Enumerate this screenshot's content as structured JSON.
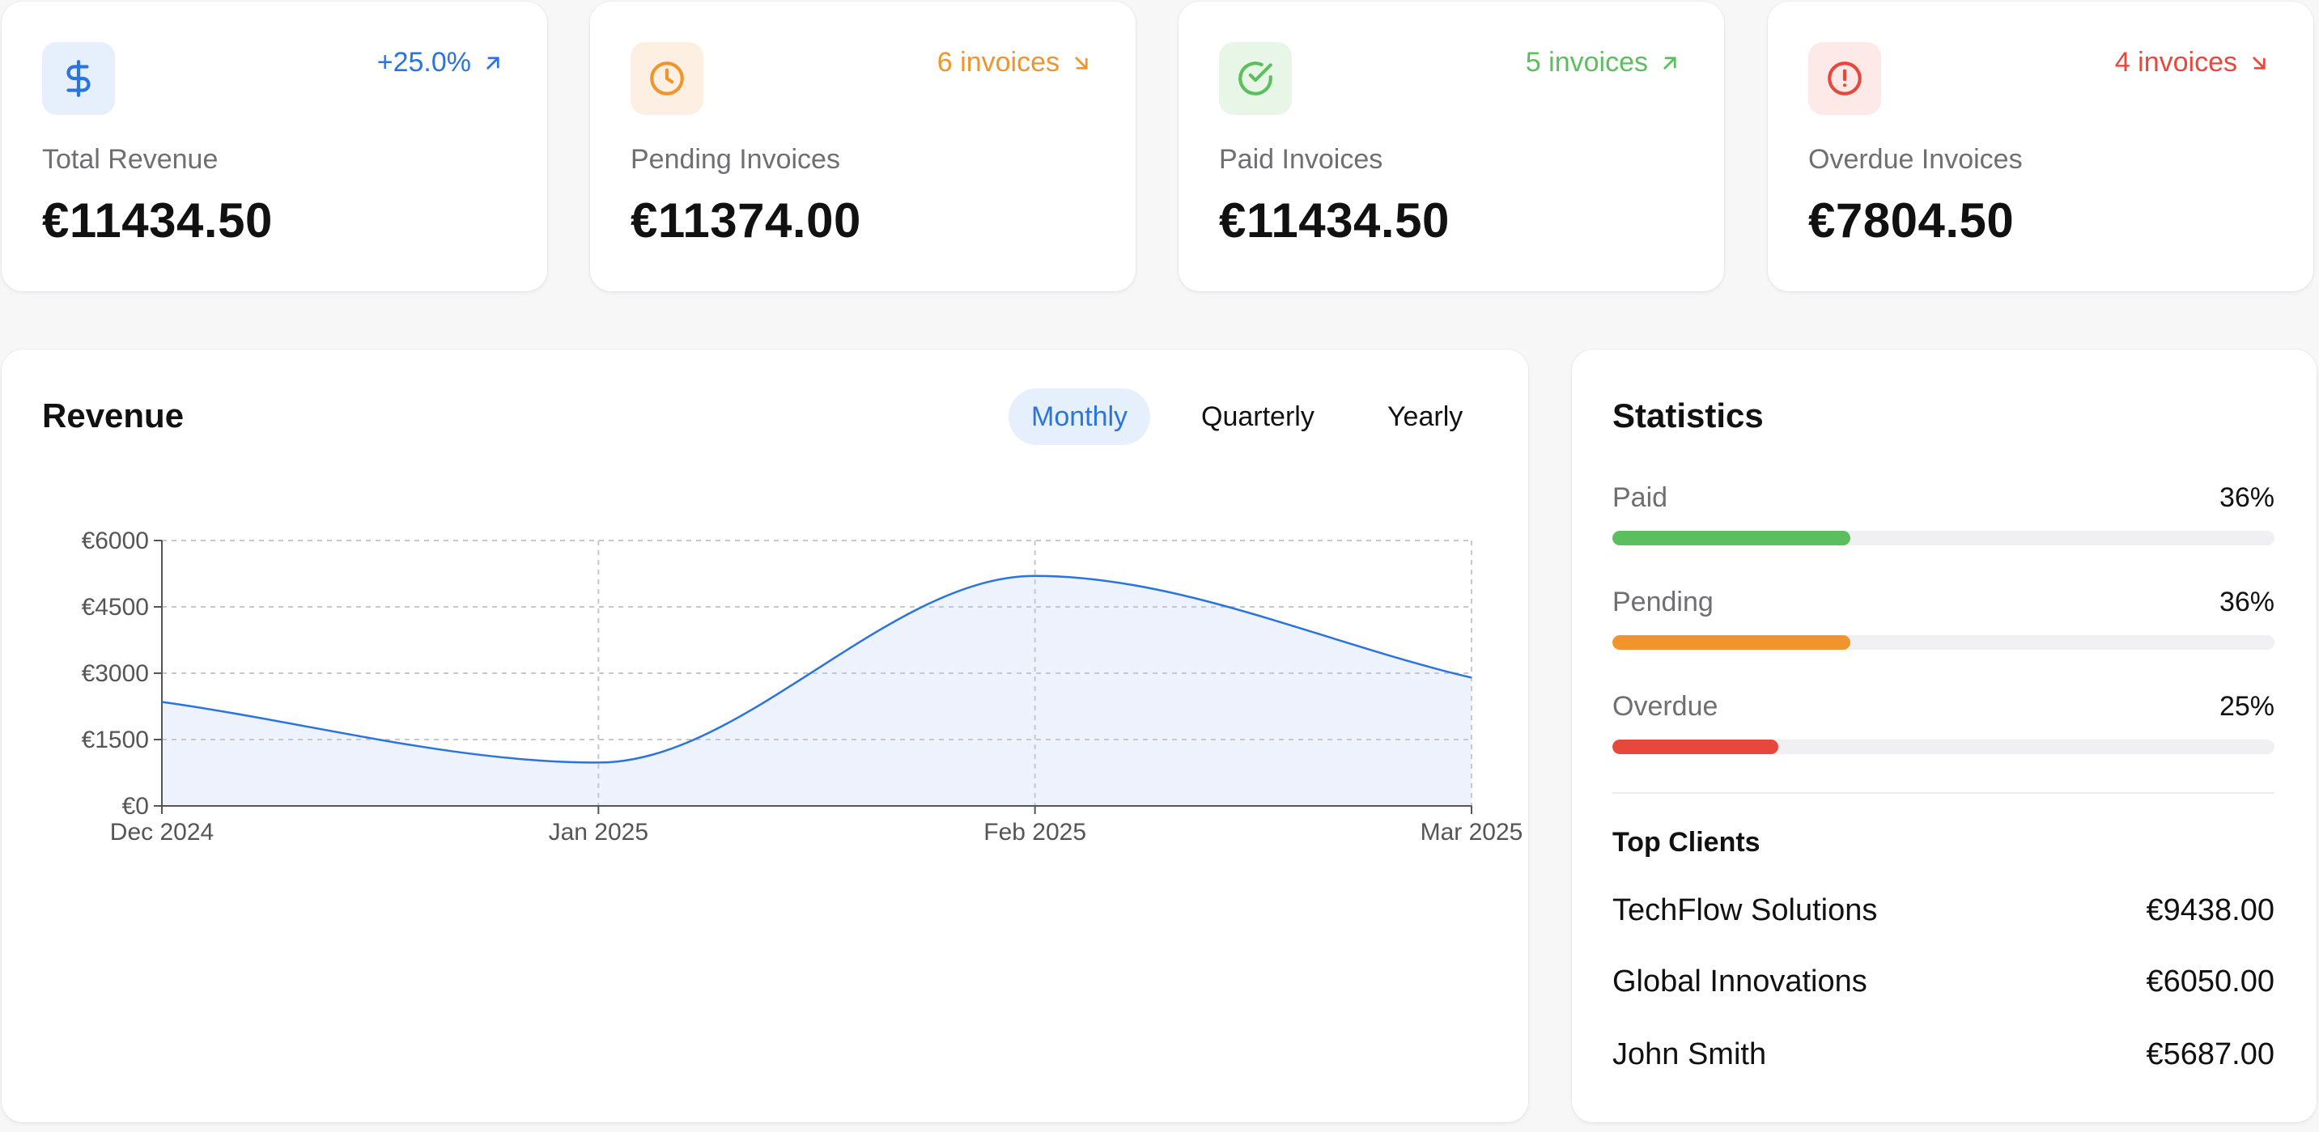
{
  "colors": {
    "blue": "#2a74e0",
    "orange": "#f0952c",
    "green": "#5cbf5f",
    "red": "#e8473c",
    "blue_bg": "#e6effc",
    "orange_bg": "#fdf0e3",
    "green_bg": "#e8f6e8",
    "red_bg": "#fde9e7"
  },
  "cards": [
    {
      "icon": "dollar-icon",
      "trend": "+25.0%",
      "trend_direction": "up",
      "label": "Total Revenue",
      "value": "€11434.50"
    },
    {
      "icon": "clock-icon",
      "trend": "6 invoices",
      "trend_direction": "down",
      "label": "Pending Invoices",
      "value": "€11374.00"
    },
    {
      "icon": "check-circle-icon",
      "trend": "5 invoices",
      "trend_direction": "up",
      "label": "Paid Invoices",
      "value": "€11434.50"
    },
    {
      "icon": "alert-circle-icon",
      "trend": "4 invoices",
      "trend_direction": "down",
      "label": "Overdue Invoices",
      "value": "€7804.50"
    }
  ],
  "revenue": {
    "title": "Revenue",
    "periods": [
      "Monthly",
      "Quarterly",
      "Yearly"
    ],
    "active_period": "Monthly"
  },
  "chart_data": {
    "type": "area",
    "title": "",
    "xlabel": "",
    "ylabel": "",
    "x": [
      "Dec 2024",
      "Jan 2025",
      "Feb 2025",
      "Mar 2025"
    ],
    "series": [
      {
        "values": [
          2350,
          980,
          5200,
          2900
        ]
      }
    ],
    "ylim": [
      0,
      6000
    ],
    "yticks": [
      0,
      1500,
      3000,
      4500,
      6000
    ],
    "ytick_labels": [
      "€0",
      "€1500",
      "€3000",
      "€4500",
      "€6000"
    ],
    "grid": true,
    "color": "#2a74e0"
  },
  "statistics": {
    "title": "Statistics",
    "items": [
      {
        "label": "Paid",
        "percent": "36%",
        "fraction": 0.36
      },
      {
        "label": "Pending",
        "percent": "36%",
        "fraction": 0.36
      },
      {
        "label": "Overdue",
        "percent": "25%",
        "fraction": 0.25
      }
    ],
    "top_clients_title": "Top Clients",
    "top_clients": [
      {
        "name": "TechFlow Solutions",
        "amount": "€9438.00"
      },
      {
        "name": "Global Innovations",
        "amount": "€6050.00"
      },
      {
        "name": "John Smith",
        "amount": "€5687.00"
      }
    ]
  }
}
